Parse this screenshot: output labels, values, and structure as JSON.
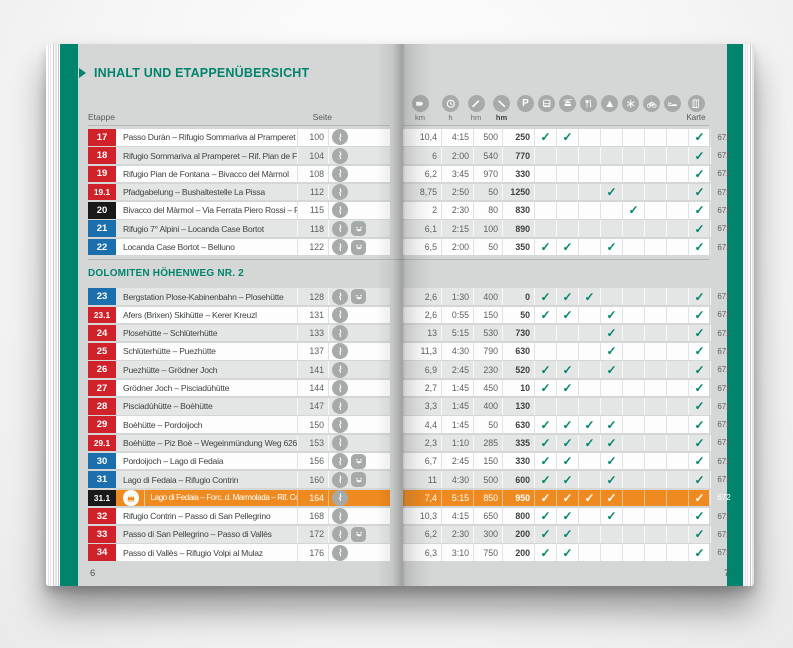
{
  "book": {
    "title": "INHALT UND ETAPPENÜBERSICHT",
    "left_page_number": "6",
    "right_page_number": "7"
  },
  "table": {
    "col_etappe": "Etappe",
    "col_seite": "Seite",
    "metric_headers": [
      {
        "icon": "signpost-icon",
        "label": "km",
        "bold": false
      },
      {
        "icon": "clock-icon",
        "label": "h",
        "bold": false
      },
      {
        "icon": "ascent-icon",
        "label": "hm",
        "bold": false
      },
      {
        "icon": "descent-icon",
        "label": "hm",
        "bold": true
      }
    ],
    "feature_headers": [
      {
        "icon": "parking-icon"
      },
      {
        "icon": "bus-icon"
      },
      {
        "icon": "cablecar-icon"
      },
      {
        "icon": "restaurant-icon"
      },
      {
        "icon": "mountain-icon"
      },
      {
        "icon": "snowflake-icon"
      },
      {
        "icon": "bicycle-icon"
      },
      {
        "icon": "bed-icon"
      }
    ],
    "feature_names": [
      "parking",
      "bus",
      "cablecar",
      "restaurant",
      "mountain",
      "snowflake",
      "bicycle",
      "accommodation"
    ],
    "map_header": {
      "icon": "map-icon",
      "label": "Karte"
    },
    "sections": [
      {
        "title": "",
        "rows": [
          {
            "nr": "17",
            "badge": "red",
            "route": "Passo Duràn – Rifugio Sommariva al Pramperet",
            "seite": "100",
            "family": false,
            "highlight": false,
            "km": "10,4",
            "h": "4:15",
            "up": "500",
            "down": "250",
            "features": [
              1,
              1,
              0,
              0,
              0,
              0,
              0,
              1
            ],
            "karte": "672",
            "stripe": "white"
          },
          {
            "nr": "18",
            "badge": "red",
            "route": "Rifugio Sommariva al Pramperet – Rif. Pian de Fontana",
            "seite": "104",
            "family": false,
            "highlight": false,
            "km": "6",
            "h": "2:00",
            "up": "540",
            "down": "770",
            "features": [
              0,
              0,
              0,
              0,
              0,
              0,
              0,
              1
            ],
            "karte": "672",
            "stripe": "gray"
          },
          {
            "nr": "19",
            "badge": "red",
            "route": "Rifugio Pian de Fontana – Bivacco del Màrmol",
            "seite": "108",
            "family": false,
            "highlight": false,
            "km": "6,2",
            "h": "3:45",
            "up": "970",
            "down": "330",
            "features": [
              0,
              0,
              0,
              0,
              0,
              0,
              0,
              1
            ],
            "karte": "672",
            "stripe": "white"
          },
          {
            "nr": "19.1",
            "badge": "red",
            "route": "Pfadgabelung – Bushaltestelle La Pissa",
            "seite": "112",
            "family": false,
            "highlight": false,
            "km": "8,75",
            "h": "2:50",
            "up": "50",
            "down": "1250",
            "features": [
              0,
              0,
              0,
              1,
              0,
              0,
              0,
              1
            ],
            "karte": "672",
            "stripe": "gray"
          },
          {
            "nr": "20",
            "badge": "black",
            "route": "Bivacco del Màrmol – Via Ferrata Piero Rossi – Rif. 7° Alpini",
            "seite": "115",
            "family": false,
            "highlight": false,
            "km": "2",
            "h": "2:30",
            "up": "80",
            "down": "830",
            "features": [
              0,
              0,
              0,
              0,
              1,
              0,
              0,
              1
            ],
            "karte": "672",
            "stripe": "white"
          },
          {
            "nr": "21",
            "badge": "blue",
            "route": "Rifugio 7° Alpini – Locanda Case Bortot",
            "seite": "118",
            "family": true,
            "highlight": false,
            "km": "6,1",
            "h": "2:15",
            "up": "100",
            "down": "890",
            "features": [
              0,
              0,
              0,
              0,
              0,
              0,
              0,
              1
            ],
            "karte": "672",
            "stripe": "gray"
          },
          {
            "nr": "22",
            "badge": "blue",
            "route": "Locanda Case Bortot – Belluno",
            "seite": "122",
            "family": true,
            "highlight": false,
            "km": "6,5",
            "h": "2:00",
            "up": "50",
            "down": "350",
            "features": [
              1,
              1,
              0,
              1,
              0,
              0,
              0,
              1
            ],
            "karte": "672",
            "stripe": "white"
          }
        ]
      },
      {
        "title": "DOLOMITEN HÖHENWEG NR. 2",
        "rows": [
          {
            "nr": "23",
            "badge": "blue",
            "route": "Bergstation Plose-Kabinenbahn – Plosehütte",
            "seite": "128",
            "family": true,
            "highlight": false,
            "km": "2,6",
            "h": "1:30",
            "up": "400",
            "down": "0",
            "features": [
              1,
              1,
              1,
              0,
              0,
              0,
              0,
              1
            ],
            "karte": "672",
            "stripe": "gray"
          },
          {
            "nr": "23.1",
            "badge": "red",
            "route": "Afers (Brixen) Skihütte – Kerer Kreuzl",
            "seite": "131",
            "family": false,
            "highlight": false,
            "km": "2,6",
            "h": "0:55",
            "up": "150",
            "down": "50",
            "features": [
              1,
              1,
              0,
              1,
              0,
              0,
              0,
              1
            ],
            "karte": "672",
            "stripe": "white"
          },
          {
            "nr": "24",
            "badge": "red",
            "route": "Plosehütte – Schlüterhütte",
            "seite": "133",
            "family": false,
            "highlight": false,
            "km": "13",
            "h": "5:15",
            "up": "530",
            "down": "730",
            "features": [
              0,
              0,
              0,
              1,
              0,
              0,
              0,
              1
            ],
            "karte": "672",
            "stripe": "gray"
          },
          {
            "nr": "25",
            "badge": "red",
            "route": "Schlüterhütte – Puezhütte",
            "seite": "137",
            "family": false,
            "highlight": false,
            "km": "11,3",
            "h": "4:30",
            "up": "790",
            "down": "630",
            "features": [
              0,
              0,
              0,
              1,
              0,
              0,
              0,
              1
            ],
            "karte": "672",
            "stripe": "white"
          },
          {
            "nr": "26",
            "badge": "red",
            "route": "Puezhütte – Grödner Joch",
            "seite": "141",
            "family": false,
            "highlight": false,
            "km": "6,9",
            "h": "2:45",
            "up": "230",
            "down": "520",
            "features": [
              1,
              1,
              0,
              1,
              0,
              0,
              0,
              1
            ],
            "karte": "672",
            "stripe": "gray"
          },
          {
            "nr": "27",
            "badge": "red",
            "route": "Grödner Joch – Pisciadùhütte",
            "seite": "144",
            "family": false,
            "highlight": false,
            "km": "2,7",
            "h": "1:45",
            "up": "450",
            "down": "10",
            "features": [
              1,
              1,
              0,
              0,
              0,
              0,
              0,
              1
            ],
            "karte": "672",
            "stripe": "white"
          },
          {
            "nr": "28",
            "badge": "red",
            "route": "Pisciadùhütte – Boèhütte",
            "seite": "147",
            "family": false,
            "highlight": false,
            "km": "3,3",
            "h": "1:45",
            "up": "400",
            "down": "130",
            "features": [
              0,
              0,
              0,
              0,
              0,
              0,
              0,
              1
            ],
            "karte": "672",
            "stripe": "gray"
          },
          {
            "nr": "29",
            "badge": "red",
            "route": "Boèhütte – Pordoijoch",
            "seite": "150",
            "family": false,
            "highlight": false,
            "km": "4,4",
            "h": "1:45",
            "up": "50",
            "down": "630",
            "features": [
              1,
              1,
              1,
              1,
              0,
              0,
              0,
              1
            ],
            "karte": "672",
            "stripe": "white"
          },
          {
            "nr": "29.1",
            "badge": "red",
            "route": "Boèhütte – Piz Boè – Wegeinmündung Weg 626",
            "seite": "153",
            "family": false,
            "highlight": false,
            "km": "2,3",
            "h": "1:10",
            "up": "285",
            "down": "335",
            "features": [
              1,
              1,
              1,
              1,
              0,
              0,
              0,
              1
            ],
            "karte": "672",
            "stripe": "gray"
          },
          {
            "nr": "30",
            "badge": "blue",
            "route": "Pordoijoch – Lago di Fedaia",
            "seite": "156",
            "family": true,
            "highlight": false,
            "km": "6,7",
            "h": "2:45",
            "up": "150",
            "down": "330",
            "features": [
              1,
              1,
              0,
              1,
              0,
              0,
              0,
              1
            ],
            "karte": "672",
            "stripe": "white"
          },
          {
            "nr": "31",
            "badge": "blue",
            "route": "Lago di Fedaia – Rifugio Contrin",
            "seite": "160",
            "family": true,
            "highlight": false,
            "km": "11",
            "h": "4:30",
            "up": "500",
            "down": "600",
            "features": [
              1,
              1,
              0,
              1,
              0,
              0,
              0,
              1
            ],
            "karte": "672",
            "stripe": "gray"
          },
          {
            "nr": "31.1",
            "badge": "black",
            "route": "Lago di Fedaia – Forc. d. Marmolada – Rif. Contrin",
            "seite": "164",
            "family": false,
            "highlight": true,
            "km": "7,4",
            "h": "5:15",
            "up": "850",
            "down": "950",
            "features": [
              1,
              1,
              1,
              1,
              0,
              0,
              0,
              1
            ],
            "karte": "672",
            "stripe": "orange"
          },
          {
            "nr": "32",
            "badge": "red",
            "route": "Rifugio Contrin – Passo di San Pellegrino",
            "seite": "168",
            "family": false,
            "highlight": false,
            "km": "10,3",
            "h": "4:15",
            "up": "650",
            "down": "800",
            "features": [
              1,
              1,
              0,
              1,
              0,
              0,
              0,
              1
            ],
            "karte": "672",
            "stripe": "white"
          },
          {
            "nr": "33",
            "badge": "red",
            "route": "Passo di San Pellegrino – Passo di Vallès",
            "seite": "172",
            "family": true,
            "highlight": false,
            "km": "6,2",
            "h": "2:30",
            "up": "300",
            "down": "200",
            "features": [
              1,
              1,
              0,
              0,
              0,
              0,
              0,
              1
            ],
            "karte": "672",
            "stripe": "gray"
          },
          {
            "nr": "34",
            "badge": "red",
            "route": "Passo di Vallès – Rifugio Volpi al Mulaz",
            "seite": "176",
            "family": false,
            "highlight": false,
            "km": "6,3",
            "h": "3:10",
            "up": "750",
            "down": "200",
            "features": [
              1,
              1,
              0,
              0,
              0,
              0,
              0,
              1
            ],
            "karte": "672",
            "stripe": "white"
          }
        ]
      }
    ]
  },
  "colors": {
    "teal": "#00846e",
    "badge_red": "#d0222a",
    "badge_blue": "#1c6fad",
    "badge_black": "#191919",
    "highlight_orange": "#ef8a20",
    "check": "#00846e",
    "page_background": "#d5d7d6",
    "row_gray": "#e4e6e5",
    "icon_gray": "#a6abaa"
  }
}
